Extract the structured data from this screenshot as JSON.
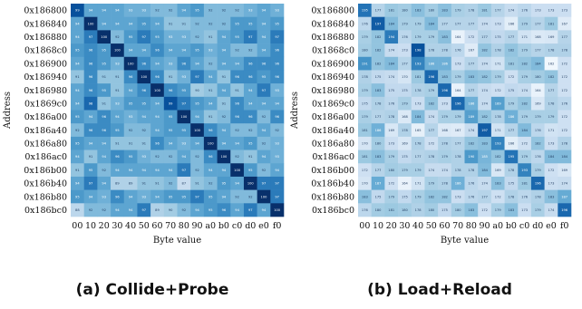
{
  "captions": {
    "a": "(a) Collide+Probe",
    "b": "(b) Load+Reload"
  },
  "colors": {
    "low": "#f7fbff",
    "high": "#08306b",
    "cell_text_dark": "#1f3a5f",
    "cell_text_light": "#ffffff"
  },
  "chart_data": [
    {
      "type": "heatmap",
      "panel": "a",
      "xlabel": "Byte value",
      "ylabel": "Address",
      "x_categories": [
        "00",
        "10",
        "20",
        "30",
        "40",
        "50",
        "60",
        "70",
        "80",
        "90",
        "a0",
        "b0",
        "c0",
        "d0",
        "e0",
        "f0"
      ],
      "y_categories": [
        "0x186800",
        "0x186840",
        "0x186880",
        "0x1868c0",
        "0x186900",
        "0x186940",
        "0x186980",
        "0x1869c0",
        "0x186a00",
        "0x186a40",
        "0x186a80",
        "0x186ac0",
        "0x186b00",
        "0x186b40",
        "0x186b80",
        "0x186bc0"
      ],
      "value_range": [
        80,
        100
      ],
      "values": [
        [
          99,
          94,
          94,
          94,
          93,
          93,
          92,
          92,
          94,
          95,
          92,
          92,
          92,
          93,
          94,
          93
        ],
        [
          94,
          100,
          94,
          94,
          94,
          95,
          94,
          91,
          91,
          92,
          92,
          92,
          95,
          95,
          94,
          95
        ],
        [
          94,
          97,
          100,
          92,
          95,
          97,
          95,
          93,
          93,
          92,
          91,
          94,
          95,
          97,
          94,
          97
        ],
        [
          95,
          96,
          95,
          100,
          94,
          94,
          96,
          94,
          94,
          95,
          93,
          94,
          92,
          92,
          94,
          96
        ],
        [
          94,
          96,
          95,
          93,
          100,
          96,
          94,
          93,
          96,
          94,
          92,
          94,
          94,
          96,
          96,
          96
        ],
        [
          91,
          96,
          91,
          91,
          96,
          100,
          96,
          91,
          93,
          97,
          94,
          91,
          96,
          96,
          95,
          96
        ],
        [
          94,
          96,
          95,
          91,
          94,
          96,
          100,
          96,
          95,
          90,
          91,
          94,
          91,
          94,
          97,
          93
        ],
        [
          94,
          98,
          91,
          93,
          95,
          95,
          94,
          99,
          97,
          95,
          94,
          91,
          96,
          94,
          94,
          94
        ],
        [
          95,
          94,
          96,
          94,
          93,
          94,
          94,
          95,
          100,
          94,
          91,
          92,
          96,
          96,
          92,
          96
        ],
        [
          92,
          96,
          96,
          95,
          92,
          92,
          94,
          95,
          95,
          100,
          96,
          94,
          92,
          92,
          94,
          92
        ],
        [
          95,
          94,
          94,
          91,
          91,
          91,
          96,
          94,
          93,
          94,
          100,
          94,
          94,
          95,
          92,
          93
        ],
        [
          94,
          91,
          94,
          96,
          95,
          93,
          92,
          92,
          94,
          92,
          96,
          100,
          92,
          91,
          94,
          93
        ],
        [
          91,
          95,
          92,
          94,
          94,
          94,
          94,
          94,
          97,
          92,
          94,
          94,
          100,
          95,
          92,
          94
        ],
        [
          94,
          97,
          94,
          89,
          89,
          91,
          91,
          92,
          87,
          91,
          92,
          95,
          94,
          100,
          97,
          97
        ],
        [
          95,
          94,
          93,
          96,
          94,
          93,
          94,
          95,
          95,
          97,
          95,
          94,
          92,
          92,
          100,
          97
        ],
        [
          88,
          92,
          92,
          94,
          94,
          97,
          89,
          90,
          92,
          94,
          95,
          96,
          94,
          97,
          94,
          100
        ]
      ]
    },
    {
      "type": "heatmap",
      "panel": "b",
      "xlabel": "Byte value",
      "ylabel": "Address",
      "x_categories": [
        "00",
        "10",
        "20",
        "30",
        "40",
        "50",
        "60",
        "70",
        "80",
        "90",
        "a0",
        "b0",
        "c0",
        "d0",
        "e0",
        "f0"
      ],
      "y_categories": [
        "0x186800",
        "0x186840",
        "0x186880",
        "0x1868c0",
        "0x186900",
        "0x186940",
        "0x186980",
        "0x1869c0",
        "0x186a00",
        "0x186a40",
        "0x186a80",
        "0x186ac0",
        "0x186b00",
        "0x186b40",
        "0x186b80",
        "0x186bc0"
      ],
      "value_range": [
        160,
        200
      ],
      "values": [
        [
          195,
          177,
          181,
          180,
          183,
          180,
          183,
          179,
          178,
          181,
          177,
          174,
          176,
          173,
          173,
          173
        ],
        [
          176,
          197,
          184,
          179,
          179,
          184,
          177,
          177,
          177,
          174,
          173,
          166,
          179,
          177,
          181,
          167
        ],
        [
          179,
          182,
          194,
          176,
          179,
          179,
          183,
          164,
          172,
          177,
          175,
          177,
          171,
          168,
          169,
          177
        ],
        [
          180,
          182,
          174,
          173,
          198,
          178,
          178,
          176,
          167,
          182,
          178,
          182,
          179,
          177,
          178,
          178
        ],
        [
          191,
          182,
          184,
          177,
          193,
          186,
          186,
          173,
          177,
          174,
          171,
          181,
          182,
          184,
          162,
          172
        ],
        [
          178,
          175,
          174,
          170,
          181,
          196,
          183,
          179,
          183,
          182,
          179,
          172,
          179,
          180,
          182,
          172
        ],
        [
          179,
          183,
          175,
          175,
          178,
          179,
          196,
          164,
          177,
          174,
          172,
          175,
          174,
          164,
          177,
          172
        ],
        [
          175,
          178,
          176,
          179,
          173,
          182,
          173,
          196,
          186,
          174,
          189,
          179,
          182,
          169,
          178,
          176
        ],
        [
          179,
          177,
          178,
          168,
          184,
          174,
          179,
          179,
          189,
          182,
          178,
          186,
          179,
          179,
          179,
          172
        ],
        [
          181,
          186,
          169,
          178,
          165,
          177,
          168,
          167,
          174,
          197,
          171,
          177,
          184,
          176,
          171,
          172
        ],
        [
          170,
          180,
          173,
          169,
          178,
          172,
          178,
          177,
          182,
          183,
          193,
          166,
          172,
          182,
          173,
          178
        ],
        [
          181,
          183,
          179,
          175,
          177,
          178,
          179,
          178,
          190,
          185,
          182,
          195,
          179,
          176,
          184,
          184
        ],
        [
          172,
          177,
          180,
          179,
          179,
          174,
          174,
          178,
          178,
          184,
          169,
          178,
          193,
          179,
          172,
          169
        ],
        [
          170,
          187,
          172,
          164,
          171,
          179,
          178,
          186,
          176,
          174,
          183,
          175,
          181,
          196,
          173,
          174
        ],
        [
          183,
          175,
          179,
          175,
          179,
          182,
          182,
          173,
          176,
          177,
          172,
          178,
          176,
          178,
          183,
          187
        ],
        [
          176,
          180,
          181,
          180,
          178,
          180,
          175,
          180,
          183,
          172,
          179,
          183,
          173,
          179,
          174,
          196
        ]
      ]
    }
  ]
}
